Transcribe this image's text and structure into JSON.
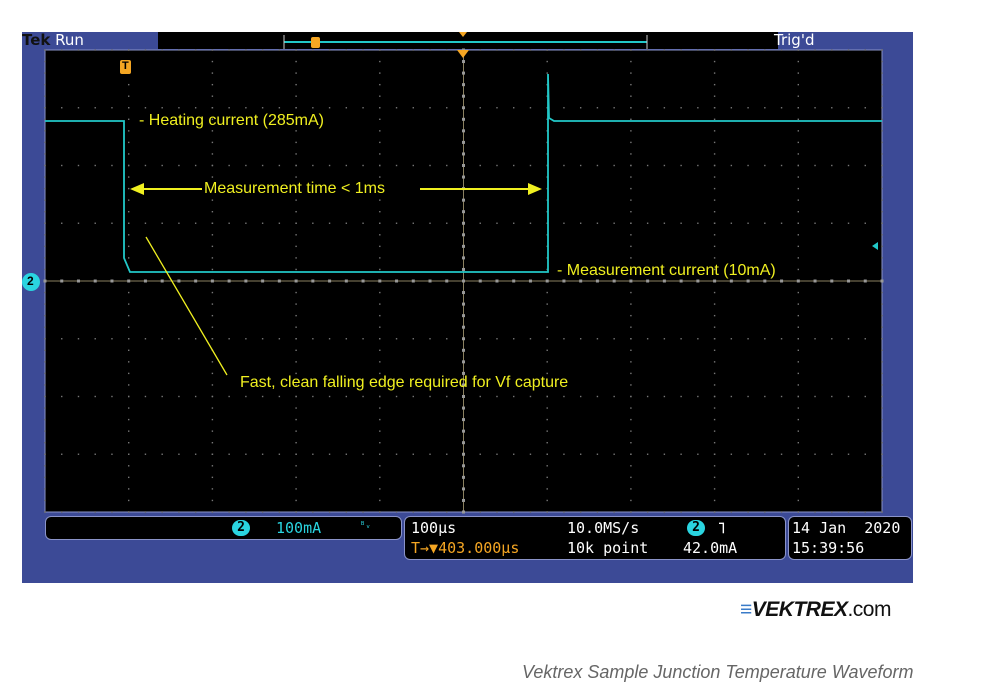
{
  "scope": {
    "brand": "Tek",
    "run_state": "Run",
    "trigger_status": "Trig'd",
    "annotations": {
      "heating": "- Heating current (285mA)",
      "measurement_time": "Measurement time < 1ms",
      "measurement_current": "- Measurement current (10mA)",
      "falling_edge": "Fast, clean falling edge required for Vf capture"
    },
    "channel_marker": "2",
    "trigger_marker": "T",
    "colors": {
      "trace": "#22c8c8",
      "annotation": "#f0f020",
      "frame": "#3c4a96",
      "trigger": "#f5a623"
    }
  },
  "readout": {
    "channel": "2",
    "scale": "100mA",
    "bw_icon": "BW",
    "timebase": "100µs",
    "trigger_position": "T→▼403.000µs",
    "sample_rate": "10.0MS/s",
    "record_length": "10k point",
    "trigger_channel": "2",
    "trigger_slope": "falling-edge",
    "trigger_level": "42.0mA",
    "date": "14 Jan  2020",
    "time": "15:39:56"
  },
  "logo": {
    "name": "VEKTREX",
    ".com": ".com"
  },
  "caption": "Vektrex Sample Junction Temperature Waveform"
}
